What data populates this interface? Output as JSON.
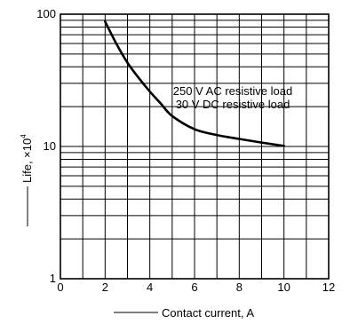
{
  "chart_data": {
    "type": "line",
    "title": "",
    "xlabel": "Contact current, A",
    "ylabel": "Life, ×10",
    "ylabel_exponent": "4",
    "xlim": [
      0,
      12
    ],
    "ylim": [
      1,
      100
    ],
    "yscale": "log",
    "grid": true,
    "x_ticks": [
      "0",
      "2",
      "4",
      "6",
      "8",
      "10",
      "12"
    ],
    "y_ticks": [
      "1",
      "10",
      "100"
    ],
    "annotations": [
      "250 V AC resistive load",
      "30 V DC resistive load"
    ],
    "series": [
      {
        "x": [
          2,
          2.5,
          3,
          3.5,
          4,
          4.5,
          5,
          6,
          7,
          8,
          9,
          10
        ],
        "values": [
          88,
          60,
          43,
          33,
          26,
          21,
          17,
          13.5,
          12.2,
          11.4,
          10.7,
          10.1
        ]
      }
    ]
  }
}
